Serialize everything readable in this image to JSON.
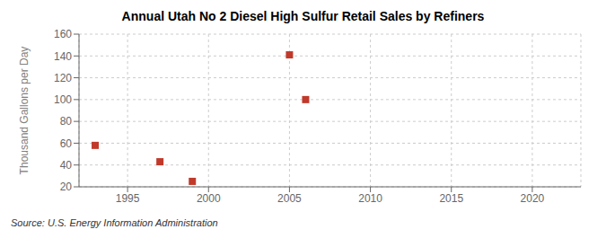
{
  "chart_data": {
    "type": "scatter",
    "title": "Annual Utah No 2 Diesel High Sulfur Retail Sales by Refiners",
    "ylabel": "Thousand Gallons per Day",
    "annotation": "Source: U.S. Energy Information Administration",
    "x": [
      1993,
      1997,
      1999,
      2005,
      2006
    ],
    "values": [
      58,
      43,
      25,
      141,
      100
    ],
    "color": "#c0392b",
    "marker": "square",
    "xlim": [
      1992,
      2023
    ],
    "xticks": [
      1995,
      2000,
      2005,
      2010,
      2015,
      2020
    ],
    "ylim": [
      20,
      160
    ],
    "yticks": [
      20,
      40,
      60,
      80,
      100,
      120,
      140,
      160
    ],
    "grid": true
  }
}
